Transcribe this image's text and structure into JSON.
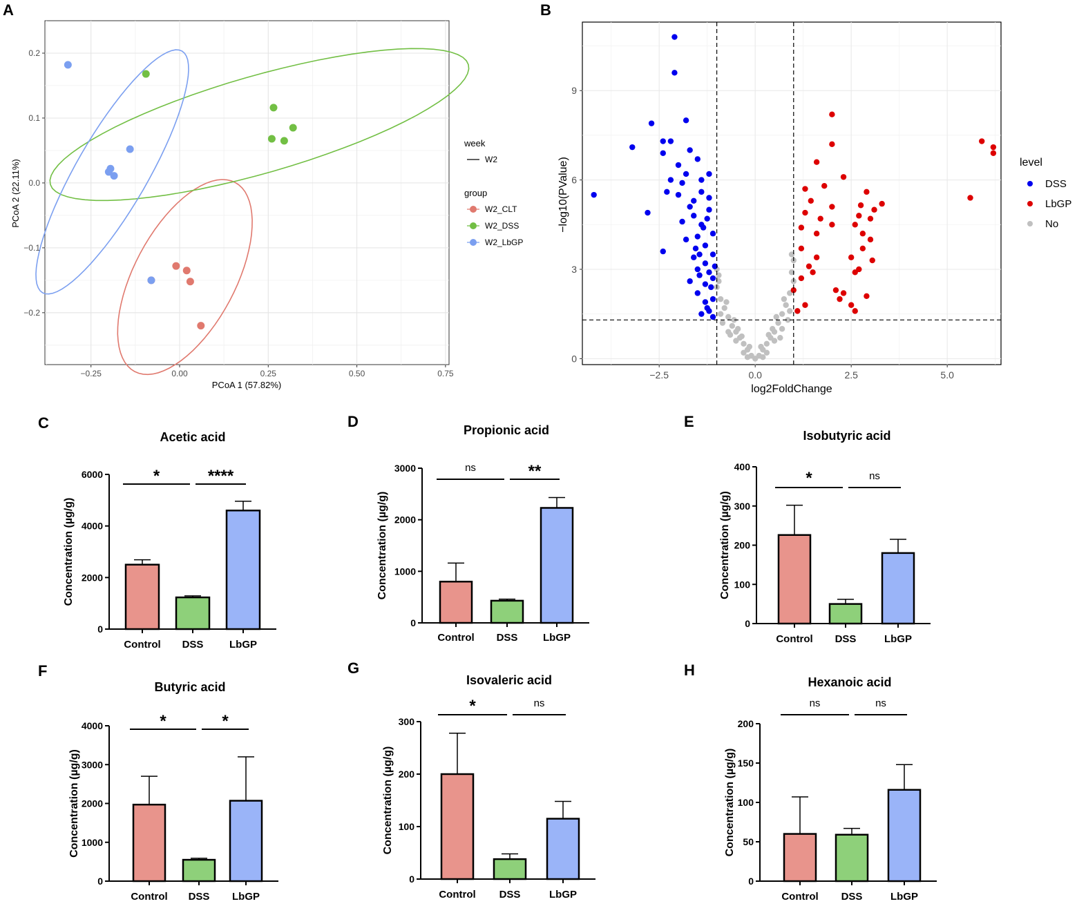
{
  "colors": {
    "clt": "#e0796e",
    "dss": "#72bf44",
    "lbgp": "#7b9ff0",
    "volc_dss": "#0000ee",
    "volc_lbgp": "#dd0000",
    "volc_no": "#c0c0c0",
    "bar_control": "#e8948c",
    "bar_dss": "#8ed07a",
    "bar_lbgp": "#9ab4f8"
  },
  "panels": {
    "A": {
      "letter": "A",
      "xlabel": "PCoA 1 (57.82%)",
      "ylabel": "PCoA 2 (22.11%)",
      "xticks": [
        {
          "v": -0.25,
          "t": "−0.25"
        },
        {
          "v": 0,
          "t": "0.00"
        },
        {
          "v": 0.25,
          "t": "0.25"
        },
        {
          "v": 0.5,
          "t": "0.50"
        },
        {
          "v": 0.75,
          "t": "0.75"
        }
      ],
      "yticks": [
        {
          "v": 0.2,
          "t": "0.2"
        },
        {
          "v": 0.1,
          "t": "0.1"
        },
        {
          "v": 0,
          "t": "0.0"
        },
        {
          "v": -0.1,
          "t": "−0.1"
        },
        {
          "v": -0.2,
          "t": "−0.2"
        }
      ],
      "legend": {
        "week_title": "week",
        "week_item": "W2",
        "group_title": "group",
        "groups": [
          "W2_CLT",
          "W2_DSS",
          "W2_LbGP"
        ]
      }
    },
    "B": {
      "letter": "B",
      "xlabel": "log2FoldChange",
      "ylabel": "−log10(PValue)",
      "xticks": [
        {
          "v": -2.5,
          "t": "−2.5"
        },
        {
          "v": 0,
          "t": "0.0"
        },
        {
          "v": 2.5,
          "t": "2.5"
        },
        {
          "v": 5,
          "t": "5.0"
        }
      ],
      "yticks": [
        {
          "v": 0,
          "t": "0"
        },
        {
          "v": 3,
          "t": "3"
        },
        {
          "v": 6,
          "t": "6"
        },
        {
          "v": 9,
          "t": "9"
        }
      ],
      "legend": {
        "title": "level",
        "items": [
          "DSS",
          "LbGP",
          "No"
        ]
      }
    }
  },
  "chart_data": [
    {
      "type": "scatter",
      "panel": "A",
      "title": "",
      "xlabel": "PCoA 1 (57.82%)",
      "ylabel": "PCoA 2 (22.11%)",
      "xlim": [
        -0.38,
        0.76
      ],
      "ylim": [
        -0.28,
        0.25
      ],
      "series": [
        {
          "name": "W2_CLT",
          "points": [
            [
              -0.01,
              -0.128
            ],
            [
              0.02,
              -0.135
            ],
            [
              0.03,
              -0.152
            ],
            [
              0.06,
              -0.22
            ],
            [
              -0.08,
              -0.15
            ]
          ],
          "ellipse": {
            "cx": 0.015,
            "cy": -0.145,
            "rx": 0.165,
            "ry": 0.078,
            "angle": -62
          }
        },
        {
          "name": "W2_DSS",
          "points": [
            [
              -0.095,
              0.168
            ],
            [
              0.265,
              0.116
            ],
            [
              0.32,
              0.085
            ],
            [
              0.26,
              0.068
            ],
            [
              0.295,
              0.065
            ]
          ],
          "ellipse": {
            "cx": 0.225,
            "cy": 0.09,
            "rx": 0.335,
            "ry": 0.075,
            "angle": -16
          }
        },
        {
          "name": "W2_LbGP",
          "points": [
            [
              -0.315,
              0.182
            ],
            [
              -0.14,
              0.052
            ],
            [
              -0.195,
              0.022
            ],
            [
              -0.2,
              0.017
            ],
            [
              -0.185,
              0.011
            ],
            [
              -0.08,
              -0.15
            ]
          ],
          "ellipse": {
            "cx": -0.19,
            "cy": 0.017,
            "rx": 0.215,
            "ry": 0.055,
            "angle": -60
          }
        }
      ]
    },
    {
      "type": "scatter",
      "panel": "B",
      "title": "",
      "xlabel": "log2FoldChange",
      "ylabel": "−log10(PValue)",
      "xlim": [
        -4.5,
        6.4
      ],
      "ylim": [
        -0.2,
        11.3
      ],
      "thresholds": {
        "x": [
          -1,
          1
        ],
        "y": 1.3
      },
      "series": [
        {
          "name": "DSS",
          "points": [
            [
              -2.1,
              10.8
            ],
            [
              -2.1,
              9.6
            ],
            [
              -4.2,
              5.5
            ],
            [
              -3.2,
              7.1
            ],
            [
              -2.7,
              7.9
            ],
            [
              -2.4,
              7.3
            ],
            [
              -2.2,
              7.3
            ],
            [
              -1.8,
              8.0
            ],
            [
              -2.4,
              6.9
            ],
            [
              -2.0,
              6.5
            ],
            [
              -1.5,
              6.7
            ],
            [
              -2.8,
              4.9
            ],
            [
              -2.4,
              3.6
            ],
            [
              -2.3,
              5.6
            ],
            [
              -2.0,
              5.5
            ],
            [
              -1.6,
              5.3
            ],
            [
              -1.2,
              5.0
            ],
            [
              -1.4,
              4.5
            ],
            [
              -1.8,
              4.0
            ],
            [
              -1.1,
              3.5
            ],
            [
              -1.5,
              3.0
            ],
            [
              -1.3,
              2.5
            ],
            [
              -1.1,
              2.0
            ],
            [
              -1.2,
              1.6
            ],
            [
              -1.4,
              1.5
            ],
            [
              -1.5,
              2.2
            ],
            [
              -1.7,
              2.6
            ],
            [
              -1.3,
              3.8
            ],
            [
              -1.6,
              4.8
            ],
            [
              -1.1,
              4.2
            ],
            [
              -1.9,
              5.9
            ],
            [
              -1.2,
              6.2
            ],
            [
              -1.7,
              7.0
            ],
            [
              -2.2,
              6.0
            ],
            [
              -1.4,
              5.6
            ],
            [
              -1.6,
              3.4
            ],
            [
              -1.2,
              2.9
            ],
            [
              -1.1,
              1.4
            ],
            [
              -1.3,
              1.9
            ],
            [
              -1.5,
              4.1
            ],
            [
              -1.2,
              5.4
            ],
            [
              -1.4,
              6.0
            ],
            [
              -1.8,
              6.2
            ],
            [
              -1.9,
              4.6
            ],
            [
              -1.3,
              3.2
            ],
            [
              -1.15,
              2.4
            ],
            [
              -1.45,
              2.8
            ],
            [
              -1.05,
              3.1
            ],
            [
              -1.35,
              4.4
            ],
            [
              -1.25,
              1.7
            ],
            [
              -1.55,
              3.7
            ],
            [
              -1.7,
              5.1
            ],
            [
              -1.25,
              4.7
            ],
            [
              -1.45,
              3.5
            ],
            [
              -1.1,
              2.7
            ]
          ]
        },
        {
          "name": "LbGP",
          "points": [
            [
              6.2,
              7.1
            ],
            [
              6.2,
              6.9
            ],
            [
              5.9,
              7.3
            ],
            [
              5.6,
              5.4
            ],
            [
              2.0,
              8.2
            ],
            [
              2.0,
              7.2
            ],
            [
              2.3,
              6.1
            ],
            [
              1.6,
              6.6
            ],
            [
              1.3,
              5.7
            ],
            [
              1.8,
              5.8
            ],
            [
              2.0,
              5.1
            ],
            [
              1.3,
              4.9
            ],
            [
              3.3,
              5.2
            ],
            [
              2.9,
              5.6
            ],
            [
              3.0,
              4.7
            ],
            [
              2.8,
              4.2
            ],
            [
              2.5,
              3.4
            ],
            [
              2.7,
              3.0
            ],
            [
              2.0,
              4.5
            ],
            [
              1.6,
              4.2
            ],
            [
              1.2,
              3.7
            ],
            [
              1.6,
              3.4
            ],
            [
              1.5,
              2.9
            ],
            [
              1.2,
              2.7
            ],
            [
              1.0,
              2.3
            ],
            [
              1.3,
              1.8
            ],
            [
              1.1,
              1.6
            ],
            [
              2.5,
              1.8
            ],
            [
              2.6,
              1.6
            ],
            [
              2.9,
              2.1
            ],
            [
              2.1,
              2.3
            ],
            [
              2.3,
              2.2
            ],
            [
              2.6,
              2.9
            ],
            [
              2.8,
              3.7
            ],
            [
              3.0,
              4.0
            ],
            [
              2.7,
              4.8
            ],
            [
              3.1,
              5.0
            ],
            [
              1.4,
              3.1
            ],
            [
              1.7,
              4.7
            ],
            [
              2.2,
              2.0
            ],
            [
              1.2,
              4.4
            ],
            [
              1.45,
              5.3
            ],
            [
              2.75,
              5.15
            ],
            [
              2.6,
              4.5
            ],
            [
              3.05,
              3.3
            ]
          ]
        },
        {
          "name": "No",
          "points": [
            [
              0,
              0
            ],
            [
              0.1,
              0.1
            ],
            [
              -0.1,
              0.1
            ],
            [
              0.2,
              0.3
            ],
            [
              -0.2,
              0.3
            ],
            [
              0.3,
              0.5
            ],
            [
              -0.3,
              0.5
            ],
            [
              0.4,
              0.7
            ],
            [
              -0.4,
              0.7
            ],
            [
              0.5,
              0.9
            ],
            [
              -0.5,
              0.9
            ],
            [
              0.6,
              1.2
            ],
            [
              -0.6,
              1.1
            ],
            [
              0.7,
              1.5
            ],
            [
              -0.7,
              1.4
            ],
            [
              0.8,
              1.8
            ],
            [
              -0.8,
              1.7
            ],
            [
              0.9,
              2.2
            ],
            [
              -0.9,
              2.0
            ],
            [
              1.0,
              2.6
            ],
            [
              -1.0,
              2.4
            ],
            [
              1.0,
              3.3
            ],
            [
              -1.0,
              3.0
            ],
            [
              0.95,
              3.5
            ],
            [
              -0.95,
              2.8
            ],
            [
              0.3,
              0.2
            ],
            [
              -0.3,
              0.2
            ],
            [
              0.5,
              0.6
            ],
            [
              -0.5,
              0.6
            ],
            [
              0.7,
              1.0
            ],
            [
              -0.7,
              0.9
            ],
            [
              0.15,
              0.4
            ],
            [
              -0.15,
              0.4
            ],
            [
              0.85,
              1.3
            ],
            [
              -0.85,
              1.2
            ],
            [
              0.45,
              1.0
            ],
            [
              -0.45,
              1.0
            ],
            [
              0.65,
              0.7
            ],
            [
              -0.65,
              0.8
            ],
            [
              0.9,
              1.6
            ],
            [
              -0.9,
              1.5
            ],
            [
              0.2,
              0.05
            ],
            [
              -0.2,
              0.05
            ],
            [
              0.35,
              0.8
            ],
            [
              -0.35,
              0.75
            ],
            [
              0.55,
              1.4
            ],
            [
              -0.55,
              1.3
            ],
            [
              0.75,
              2.0
            ],
            [
              -0.75,
              1.9
            ],
            [
              0.95,
              2.9
            ],
            [
              -0.95,
              2.6
            ]
          ]
        }
      ]
    },
    {
      "type": "bar",
      "panel": "C",
      "letter": "C",
      "title": "Acetic acid",
      "ylabel": "Concentration (µg/g)",
      "categories": [
        "Control",
        "DSS",
        "LbGP"
      ],
      "values": [
        2500,
        1230,
        4600
      ],
      "errors": [
        2690,
        1290,
        4960
      ],
      "ylim": [
        0,
        6000
      ],
      "yticks": [
        "0",
        "2000",
        "4000",
        "6000"
      ],
      "sig": [
        {
          "from": 0,
          "to": 1,
          "label": "*"
        },
        {
          "from": 1,
          "to": 2,
          "label": "****"
        }
      ]
    },
    {
      "type": "bar",
      "panel": "D",
      "letter": "D",
      "title": "Propionic acid",
      "ylabel": "Concentration (µg/g)",
      "categories": [
        "Control",
        "DSS",
        "LbGP"
      ],
      "values": [
        800,
        430,
        2230
      ],
      "errors": [
        1160,
        460,
        2430
      ],
      "ylim": [
        0,
        3000
      ],
      "yticks": [
        "0",
        "1000",
        "2000",
        "3000"
      ],
      "sig": [
        {
          "from": 0,
          "to": 1,
          "label": "ns"
        },
        {
          "from": 1,
          "to": 2,
          "label": "**"
        }
      ]
    },
    {
      "type": "bar",
      "panel": "E",
      "letter": "E",
      "title": "Isobutyric acid",
      "ylabel": "Concentration (µg/g)",
      "categories": [
        "Control",
        "DSS",
        "LbGP"
      ],
      "values": [
        226,
        50,
        180
      ],
      "errors": [
        302,
        62,
        215
      ],
      "ylim": [
        0,
        400
      ],
      "yticks": [
        "0",
        "100",
        "200",
        "300",
        "400"
      ],
      "sig": [
        {
          "from": 0,
          "to": 1,
          "label": "*"
        },
        {
          "from": 1,
          "to": 2,
          "label": "ns"
        }
      ]
    },
    {
      "type": "bar",
      "panel": "F",
      "letter": "F",
      "title": "Butyric acid",
      "ylabel": "Concentration (µg/g)",
      "categories": [
        "Control",
        "DSS",
        "LbGP"
      ],
      "values": [
        1970,
        550,
        2070
      ],
      "errors": [
        2700,
        590,
        3200
      ],
      "ylim": [
        0,
        4000
      ],
      "yticks": [
        "0",
        "1000",
        "2000",
        "3000",
        "4000"
      ],
      "sig": [
        {
          "from": 0,
          "to": 1,
          "label": "*"
        },
        {
          "from": 1,
          "to": 2,
          "label": "*"
        }
      ]
    },
    {
      "type": "bar",
      "panel": "G",
      "letter": "G",
      "title": "Isovaleric acid",
      "ylabel": "Concentration (µg/g)",
      "categories": [
        "Control",
        "DSS",
        "LbGP"
      ],
      "values": [
        200,
        38,
        115
      ],
      "errors": [
        278,
        48,
        148
      ],
      "ylim": [
        0,
        300
      ],
      "yticks": [
        "0",
        "100",
        "200",
        "300"
      ],
      "sig": [
        {
          "from": 0,
          "to": 1,
          "label": "*"
        },
        {
          "from": 1,
          "to": 2,
          "label": "ns"
        }
      ]
    },
    {
      "type": "bar",
      "panel": "H",
      "letter": "H",
      "title": "Hexanoic acid",
      "ylabel": "Concentration (µg/g)",
      "categories": [
        "Control",
        "DSS",
        "LbGP"
      ],
      "values": [
        60,
        59,
        116
      ],
      "errors": [
        107,
        67,
        148
      ],
      "ylim": [
        0,
        200
      ],
      "yticks": [
        "0",
        "50",
        "100",
        "150",
        "200"
      ],
      "sig": [
        {
          "from": 0,
          "to": 1,
          "label": "ns"
        },
        {
          "from": 1,
          "to": 2,
          "label": "ns"
        }
      ]
    }
  ]
}
